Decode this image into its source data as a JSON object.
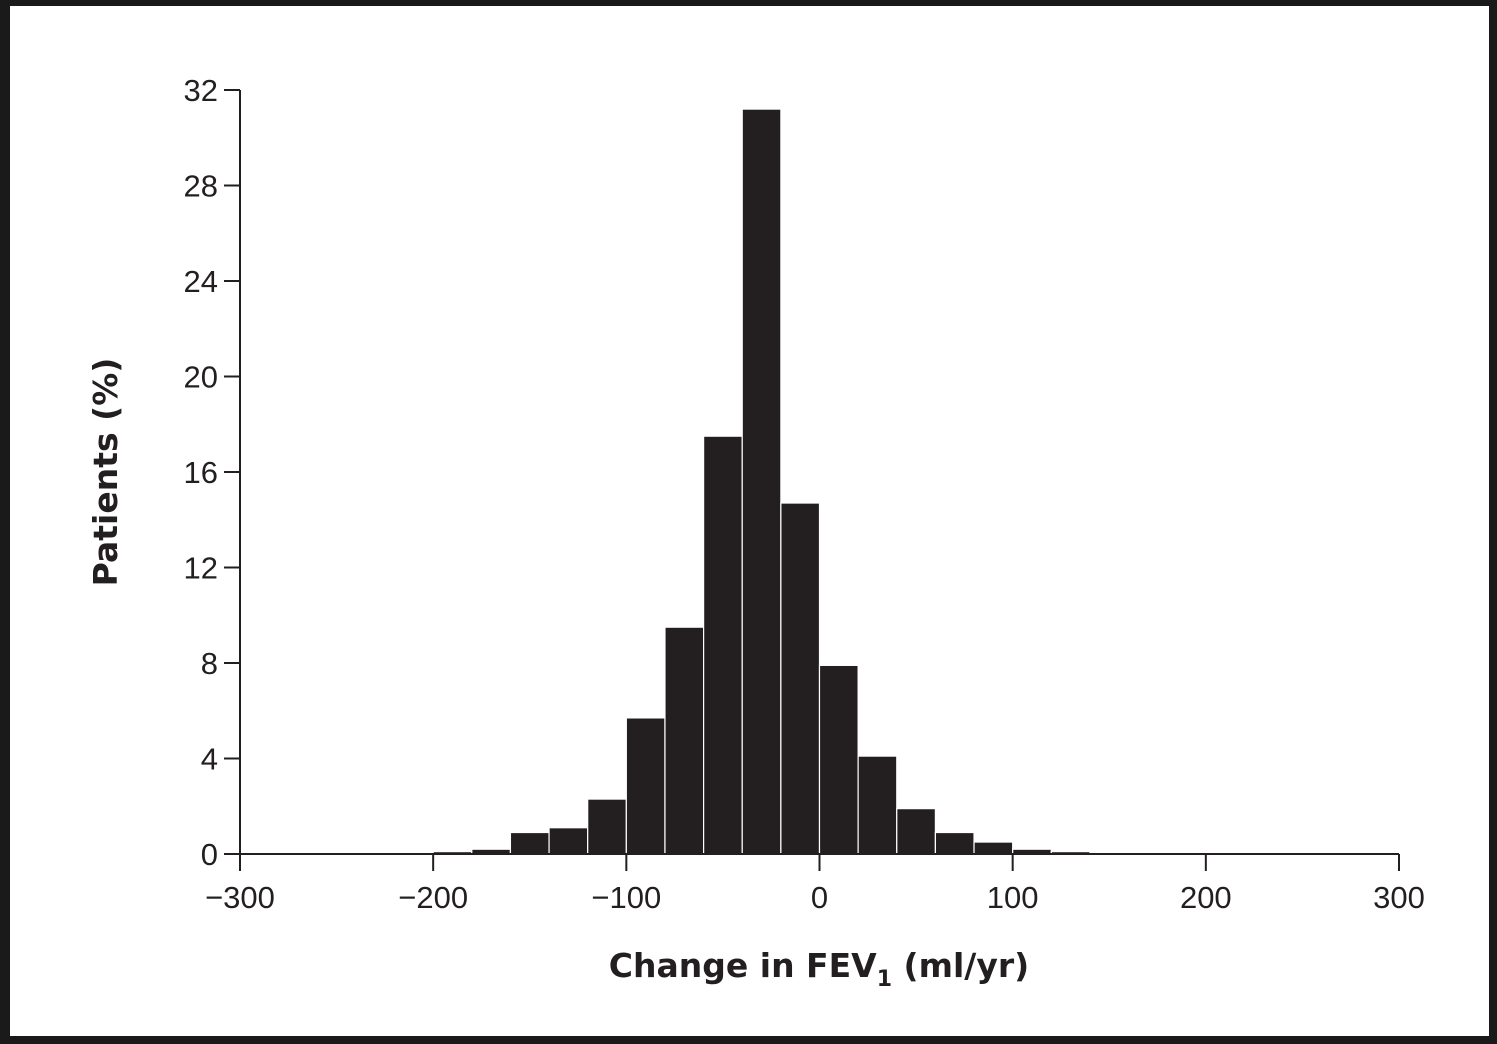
{
  "chart_data": {
    "type": "bar",
    "title": "",
    "xlabel": "Change in FEV1 (ml/yr)",
    "xlabel_parts": {
      "main": "Change in FEV",
      "subscript": "1",
      "suffix": " (ml/yr)"
    },
    "ylabel": "Patients (%)",
    "xlim": [
      -300,
      300
    ],
    "ylim": [
      0,
      32
    ],
    "x_ticks": [
      -300,
      -200,
      -100,
      0,
      100,
      200,
      300
    ],
    "x_tick_labels": [
      "−300",
      "−200",
      "−100",
      "0",
      "100",
      "200",
      "300"
    ],
    "y_ticks": [
      0,
      4,
      8,
      12,
      16,
      20,
      24,
      28,
      32
    ],
    "y_tick_labels": [
      "0",
      "4",
      "8",
      "12",
      "16",
      "20",
      "24",
      "28",
      "32"
    ],
    "bin_width": 20,
    "bar_color": "#231f20",
    "grid": false,
    "bins": [
      {
        "x0": -300,
        "x1": -280,
        "value": 0.05
      },
      {
        "x0": -280,
        "x1": -260,
        "value": 0.05
      },
      {
        "x0": -260,
        "x1": -240,
        "value": 0.05
      },
      {
        "x0": -240,
        "x1": -220,
        "value": 0
      },
      {
        "x0": -220,
        "x1": -200,
        "value": 0.05
      },
      {
        "x0": -200,
        "x1": -180,
        "value": 0.1
      },
      {
        "x0": -180,
        "x1": -160,
        "value": 0.2
      },
      {
        "x0": -160,
        "x1": -140,
        "value": 0.9
      },
      {
        "x0": -140,
        "x1": -120,
        "value": 1.1
      },
      {
        "x0": -120,
        "x1": -100,
        "value": 2.3
      },
      {
        "x0": -100,
        "x1": -80,
        "value": 5.7
      },
      {
        "x0": -80,
        "x1": -60,
        "value": 9.5
      },
      {
        "x0": -60,
        "x1": -40,
        "value": 17.5
      },
      {
        "x0": -40,
        "x1": -20,
        "value": 31.2
      },
      {
        "x0": -20,
        "x1": 0,
        "value": 14.7
      },
      {
        "x0": 0,
        "x1": 20,
        "value": 7.9
      },
      {
        "x0": 20,
        "x1": 40,
        "value": 4.1
      },
      {
        "x0": 40,
        "x1": 60,
        "value": 1.9
      },
      {
        "x0": 60,
        "x1": 80,
        "value": 0.9
      },
      {
        "x0": 80,
        "x1": 100,
        "value": 0.5
      },
      {
        "x0": 100,
        "x1": 120,
        "value": 0.2
      },
      {
        "x0": 120,
        "x1": 140,
        "value": 0.1
      },
      {
        "x0": 140,
        "x1": 160,
        "value": 0
      },
      {
        "x0": 160,
        "x1": 180,
        "value": 0
      },
      {
        "x0": 180,
        "x1": 200,
        "value": 0.05
      },
      {
        "x0": 200,
        "x1": 220,
        "value": 0
      },
      {
        "x0": 220,
        "x1": 240,
        "value": 0
      },
      {
        "x0": 240,
        "x1": 260,
        "value": 0.05
      },
      {
        "x0": 260,
        "x1": 280,
        "value": 0
      },
      {
        "x0": 280,
        "x1": 300,
        "value": 0.05
      }
    ]
  }
}
